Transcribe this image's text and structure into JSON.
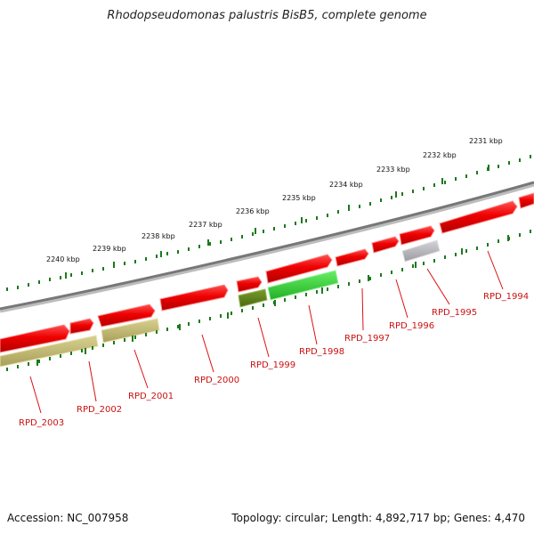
{
  "title": "Rhodopseudomonas palustris BisB5, complete genome",
  "footer": {
    "accession": "Accession: NC_007958",
    "stats": "Topology: circular; Length: 4,892,717 bp; Genes: 4,470"
  },
  "colors": {
    "backbone": "#777777",
    "forward_gene": "#ee0000",
    "reverse_gene_khaki": "#b8b068",
    "reverse_gene_darkgreen": "#5a7a1a",
    "reverse_gene_green": "#33cc33",
    "reverse_gene_gray": "#b0b0b4",
    "tick": "#1a7a1a",
    "gene_label": "#cc1111"
  },
  "kbp_labels": [
    "2240 kbp",
    "2239 kbp",
    "2238 kbp",
    "2237 kbp",
    "2236 kbp",
    "2235 kbp",
    "2234 kbp",
    "2233 kbp",
    "2232 kbp",
    "2231 kbp"
  ],
  "gene_labels": [
    "RPD_2003",
    "RPD_2002",
    "RPD_2001",
    "RPD_2000",
    "RPD_1999",
    "RPD_1998",
    "RPD_1997",
    "RPD_1996",
    "RPD_1995",
    "RPD_1994"
  ],
  "forward_genes": [
    {
      "shape": "arrow"
    },
    {
      "shape": "arrow"
    },
    {
      "shape": "arrow"
    },
    {
      "shape": "arrow"
    },
    {
      "shape": "arrow"
    },
    {
      "shape": "arrow"
    },
    {
      "shape": "arrow"
    },
    {
      "shape": "arrow"
    },
    {
      "shape": "arrow"
    },
    {
      "shape": "arrow"
    },
    {
      "shape": "arrow"
    },
    {
      "shape": "arrow"
    }
  ],
  "reverse_genes": [
    {
      "color_key": "reverse_gene_khaki",
      "label": "RPD_2003"
    },
    {
      "color_key": "reverse_gene_khaki",
      "label": "RPD_2001"
    },
    {
      "color_key": "reverse_gene_darkgreen",
      "label": "RPD_1999"
    },
    {
      "color_key": "reverse_gene_green",
      "label": "RPD_1998"
    },
    {
      "color_key": "reverse_gene_gray",
      "label": "RPD_1995"
    }
  ]
}
